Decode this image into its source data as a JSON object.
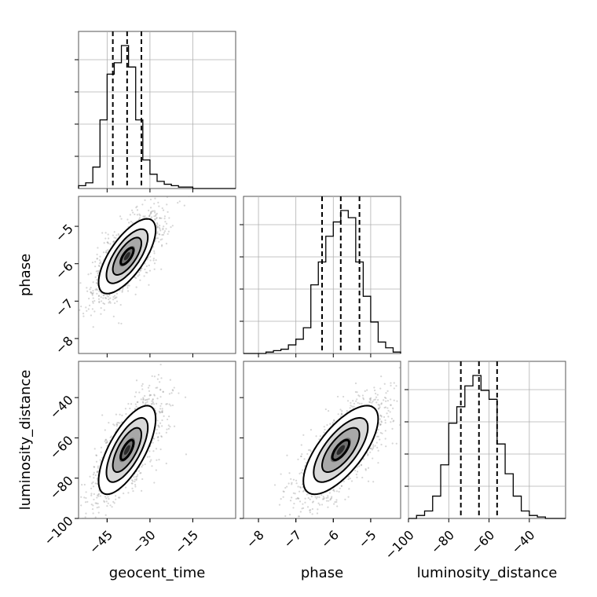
{
  "chart_data": {
    "type": "corner",
    "parameters": [
      {
        "name": "geocent_time",
        "xlabel": "geocent_time",
        "ylabel": "",
        "range": [
          -55,
          0
        ],
        "ticks": [
          -45,
          -30,
          -15
        ],
        "tick_labels": [
          "−45",
          "−30",
          "−15"
        ],
        "quantiles": [
          -43,
          -38,
          -33
        ],
        "histogram": {
          "bin_edges": [
            -55,
            -52.5,
            -50,
            -47.5,
            -45,
            -42.5,
            -40,
            -37.5,
            -35,
            -32.5,
            -30,
            -27.5,
            -25,
            -22.5,
            -20,
            -17.5,
            -15,
            -12.5,
            -10,
            -7.5,
            -5,
            -2.5,
            0
          ],
          "counts": [
            0.02,
            0.04,
            0.15,
            0.48,
            0.8,
            0.88,
            1.0,
            0.85,
            0.48,
            0.2,
            0.1,
            0.05,
            0.03,
            0.02,
            0.01,
            0.01,
            0.0,
            0.0,
            0.0,
            0.0,
            0.0,
            0.0
          ]
        }
      },
      {
        "name": "phase",
        "xlabel": "phase",
        "ylabel": "phase",
        "range": [
          -8.4,
          -4.2
        ],
        "ticks": [
          -8,
          -7,
          -6,
          -5
        ],
        "tick_labels": [
          "−8",
          "−7",
          "−6",
          "−5"
        ],
        "quantiles": [
          -6.3,
          -5.8,
          -5.3
        ],
        "histogram": {
          "bin_edges": [
            -8.4,
            -8.2,
            -8.0,
            -7.8,
            -7.6,
            -7.4,
            -7.2,
            -7.0,
            -6.8,
            -6.6,
            -6.4,
            -6.2,
            -6.0,
            -5.8,
            -5.6,
            -5.4,
            -5.2,
            -5.0,
            -4.8,
            -4.6,
            -4.4,
            -4.2
          ],
          "counts": [
            0.0,
            0.0,
            0.0,
            0.01,
            0.02,
            0.03,
            0.06,
            0.1,
            0.18,
            0.48,
            0.64,
            0.82,
            0.92,
            1.0,
            0.95,
            0.64,
            0.4,
            0.22,
            0.08,
            0.04,
            0.01
          ]
        }
      },
      {
        "name": "luminosity_distance",
        "xlabel": "luminosity_distance",
        "ylabel": "luminosity_distance",
        "range": [
          -100,
          -22
        ],
        "ticks": [
          -100,
          -80,
          -60,
          -40
        ],
        "tick_labels": [
          "−100",
          "−80",
          "−60",
          "−40"
        ],
        "quantiles": [
          -74,
          -65,
          -56
        ],
        "histogram": {
          "bin_edges": [
            -100,
            -96,
            -92,
            -88,
            -84,
            -80,
            -76,
            -72,
            -68,
            -64,
            -60,
            -56,
            -52,
            -48,
            -44,
            -40,
            -36,
            -32,
            -28,
            -24,
            -22
          ],
          "counts": [
            0.0,
            0.02,
            0.05,
            0.15,
            0.36,
            0.64,
            0.75,
            0.89,
            0.96,
            0.86,
            0.8,
            0.5,
            0.3,
            0.15,
            0.05,
            0.02,
            0.01,
            0.0,
            0.0,
            0.0
          ]
        }
      }
    ],
    "correlations": [
      {
        "x": "geocent_time",
        "y": "phase",
        "mean": [
          -38,
          -5.8
        ],
        "std": [
          5,
          0.5
        ],
        "rho": 0.7
      },
      {
        "x": "geocent_time",
        "y": "luminosity_distance",
        "mean": [
          -38,
          -66
        ],
        "std": [
          5,
          11
        ],
        "rho": 0.7
      },
      {
        "x": "phase",
        "y": "luminosity_distance",
        "mean": [
          -5.8,
          -66
        ],
        "std": [
          0.5,
          11
        ],
        "rho": 0.7
      }
    ],
    "grid": true
  }
}
